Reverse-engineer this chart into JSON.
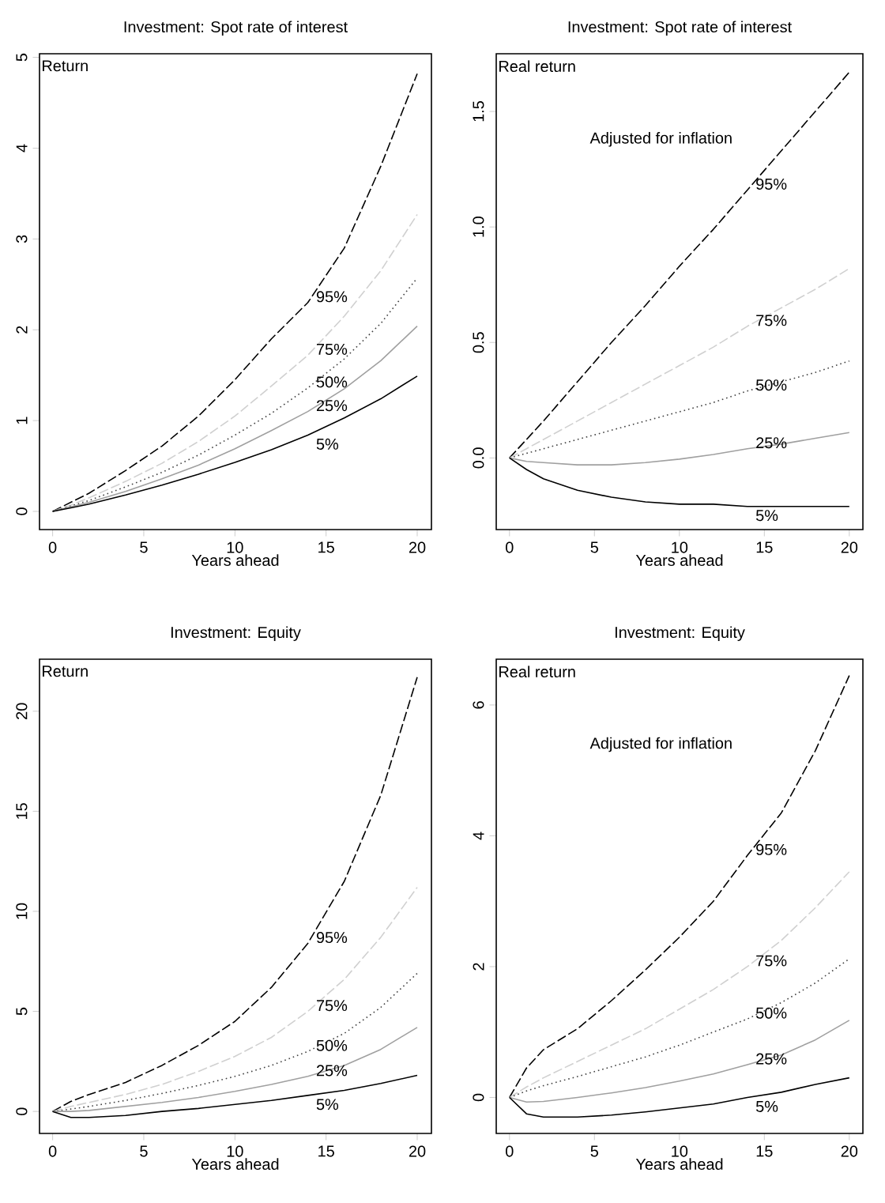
{
  "chart_data": [
    {
      "type": "line",
      "title": "Investment: Spot rate of interest",
      "xlabel": "Years ahead",
      "ylabel": "Return",
      "xlim": [
        -0.72,
        20.78
      ],
      "ylim": [
        -0.2,
        5.04
      ],
      "xticks": [
        0,
        5,
        10,
        15,
        20
      ],
      "yticks": [
        0,
        1,
        2,
        3,
        4,
        5
      ],
      "x": [
        0,
        1,
        2,
        4,
        6,
        8,
        10,
        12,
        14,
        16,
        18,
        20
      ],
      "series": [
        {
          "name": "95%",
          "color": "#000000",
          "line_style": "dashed",
          "values": [
            0,
            0.1,
            0.2,
            0.45,
            0.72,
            1.05,
            1.45,
            1.9,
            2.3,
            2.9,
            3.8,
            4.82
          ]
        },
        {
          "name": "75%",
          "color": "#d0d0d0",
          "line_style": "dashed",
          "values": [
            0,
            0.07,
            0.15,
            0.33,
            0.53,
            0.77,
            1.05,
            1.38,
            1.72,
            2.15,
            2.65,
            3.27
          ]
        },
        {
          "name": "50%",
          "color": "#404040",
          "line_style": "dotted",
          "values": [
            0,
            0.06,
            0.12,
            0.27,
            0.43,
            0.62,
            0.84,
            1.08,
            1.36,
            1.68,
            2.07,
            2.57
          ]
        },
        {
          "name": "25%",
          "color": "#a0a0a0",
          "line_style": "solid",
          "values": [
            0,
            0.05,
            0.1,
            0.22,
            0.36,
            0.51,
            0.69,
            0.89,
            1.1,
            1.35,
            1.66,
            2.04
          ]
        },
        {
          "name": "5%",
          "color": "#000000",
          "line_style": "solid",
          "values": [
            0,
            0.04,
            0.08,
            0.18,
            0.29,
            0.41,
            0.54,
            0.68,
            0.84,
            1.03,
            1.24,
            1.49
          ]
        }
      ]
    },
    {
      "type": "line",
      "title": "Investment: Spot rate of interest",
      "xlabel": "Years ahead",
      "ylabel": "Real return",
      "annotations": [
        "Adjusted for inflation"
      ],
      "xlim": [
        -0.78,
        20.8
      ],
      "ylim": [
        -0.31,
        1.75
      ],
      "xticks": [
        0,
        5,
        10,
        15,
        20
      ],
      "yticks": [
        {
          "value": 0,
          "label": "0.0"
        },
        {
          "value": 0.5,
          "label": "0.5"
        },
        {
          "value": 1,
          "label": "1.0"
        },
        {
          "value": 1.5,
          "label": "1.5"
        }
      ],
      "x": [
        0,
        1,
        2,
        4,
        6,
        8,
        10,
        12,
        14,
        16,
        18,
        20
      ],
      "series": [
        {
          "name": "95%",
          "color": "#000000",
          "line_style": "dashed",
          "values": [
            0,
            0.08,
            0.16,
            0.33,
            0.5,
            0.66,
            0.83,
            0.99,
            1.16,
            1.33,
            1.5,
            1.67
          ]
        },
        {
          "name": "75%",
          "color": "#d0d0d0",
          "line_style": "dashed",
          "values": [
            0,
            0.04,
            0.08,
            0.16,
            0.24,
            0.32,
            0.4,
            0.48,
            0.57,
            0.65,
            0.73,
            0.82
          ]
        },
        {
          "name": "50%",
          "color": "#404040",
          "line_style": "dotted",
          "values": [
            0,
            0.02,
            0.04,
            0.08,
            0.12,
            0.16,
            0.2,
            0.24,
            0.29,
            0.33,
            0.37,
            0.42
          ]
        },
        {
          "name": "25%",
          "color": "#a0a0a0",
          "line_style": "solid",
          "values": [
            0,
            -0.015,
            -0.02,
            -0.03,
            -0.03,
            -0.02,
            -0.005,
            0.015,
            0.04,
            0.06,
            0.085,
            0.11
          ]
        },
        {
          "name": "5%",
          "color": "#000000",
          "line_style": "solid",
          "values": [
            0,
            -0.05,
            -0.09,
            -0.14,
            -0.17,
            -0.19,
            -0.2,
            -0.2,
            -0.21,
            -0.21,
            -0.21,
            -0.21
          ]
        }
      ]
    },
    {
      "type": "line",
      "title": "Investment: Equity",
      "xlabel": "Years ahead",
      "ylabel": "Return",
      "xlim": [
        -0.72,
        20.78
      ],
      "ylim": [
        -1.1,
        22.6
      ],
      "xticks": [
        0,
        5,
        10,
        15,
        20
      ],
      "yticks": [
        0,
        5,
        10,
        15,
        20
      ],
      "x": [
        0,
        1,
        2,
        4,
        6,
        8,
        10,
        12,
        14,
        16,
        18,
        20
      ],
      "series": [
        {
          "name": "95%",
          "color": "#000000",
          "line_style": "dashed",
          "values": [
            0,
            0.5,
            0.85,
            1.45,
            2.3,
            3.3,
            4.5,
            6.2,
            8.4,
            11.5,
            15.8,
            21.7
          ]
        },
        {
          "name": "75%",
          "color": "#d0d0d0",
          "line_style": "dashed",
          "values": [
            0,
            0.25,
            0.45,
            0.85,
            1.35,
            2,
            2.75,
            3.7,
            5,
            6.6,
            8.7,
            11.2
          ]
        },
        {
          "name": "50%",
          "color": "#404040",
          "line_style": "dotted",
          "values": [
            0,
            0.12,
            0.25,
            0.55,
            0.9,
            1.3,
            1.75,
            2.3,
            3,
            3.9,
            5.2,
            6.9
          ]
        },
        {
          "name": "25%",
          "color": "#a0a0a0",
          "line_style": "solid",
          "values": [
            0,
            0,
            0.05,
            0.25,
            0.45,
            0.7,
            1,
            1.35,
            1.75,
            2.3,
            3.1,
            4.2
          ]
        },
        {
          "name": "5%",
          "color": "#000000",
          "line_style": "solid",
          "values": [
            0,
            -0.3,
            -0.3,
            -0.2,
            0,
            0.15,
            0.35,
            0.55,
            0.8,
            1.05,
            1.4,
            1.8
          ]
        }
      ]
    },
    {
      "type": "line",
      "title": "Investment: Equity",
      "xlabel": "Years ahead",
      "ylabel": "Real return",
      "annotations": [
        "Adjusted for inflation"
      ],
      "xlim": [
        -0.78,
        20.8
      ],
      "ylim": [
        -0.55,
        6.7
      ],
      "xticks": [
        0,
        5,
        10,
        15,
        20
      ],
      "yticks": [
        0,
        2,
        4,
        6
      ],
      "x": [
        0,
        1,
        2,
        4,
        6,
        8,
        10,
        12,
        14,
        16,
        18,
        20
      ],
      "series": [
        {
          "name": "95%",
          "color": "#000000",
          "line_style": "dashed",
          "values": [
            0,
            0.45,
            0.73,
            1.05,
            1.48,
            1.95,
            2.45,
            3,
            3.7,
            4.35,
            5.3,
            6.45
          ]
        },
        {
          "name": "75%",
          "color": "#d0d0d0",
          "line_style": "dashed",
          "values": [
            0,
            0.16,
            0.3,
            0.55,
            0.8,
            1.05,
            1.35,
            1.65,
            2,
            2.4,
            2.9,
            3.45
          ]
        },
        {
          "name": "50%",
          "color": "#404040",
          "line_style": "dotted",
          "values": [
            0,
            0.1,
            0.18,
            0.32,
            0.47,
            0.62,
            0.8,
            1,
            1.2,
            1.45,
            1.75,
            2.12
          ]
        },
        {
          "name": "25%",
          "color": "#a0a0a0",
          "line_style": "solid",
          "values": [
            0,
            -0.07,
            -0.06,
            0,
            0.07,
            0.15,
            0.25,
            0.36,
            0.5,
            0.65,
            0.88,
            1.18
          ]
        },
        {
          "name": "5%",
          "color": "#000000",
          "line_style": "solid",
          "values": [
            0,
            -0.25,
            -0.3,
            -0.3,
            -0.27,
            -0.22,
            -0.16,
            -0.1,
            0,
            0.08,
            0.2,
            0.3
          ]
        }
      ]
    }
  ]
}
